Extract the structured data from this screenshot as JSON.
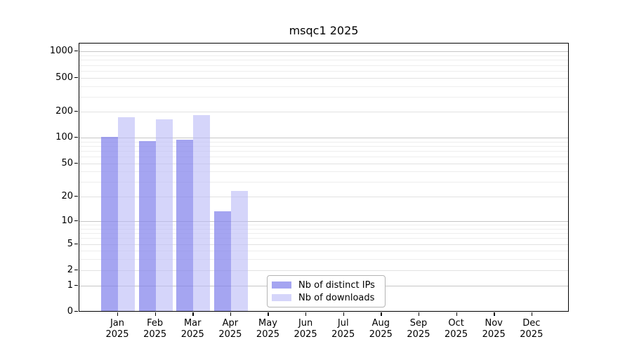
{
  "chart_data": {
    "type": "bar",
    "title": "msqc1 2025",
    "xlabel": "",
    "ylabel": "",
    "year_label": "2025",
    "categories": [
      "Jan",
      "Feb",
      "Mar",
      "Apr",
      "May",
      "Jun",
      "Jul",
      "Aug",
      "Sep",
      "Oct",
      "Nov",
      "Dec"
    ],
    "series": [
      {
        "name": "Nb of distinct IPs",
        "color": "#8282eb",
        "values": [
          100,
          90,
          92,
          13,
          0,
          0,
          0,
          0,
          0,
          0,
          0,
          0
        ]
      },
      {
        "name": "Nb of downloads",
        "color": "#bbbbf7",
        "values": [
          170,
          160,
          180,
          23,
          0,
          0,
          0,
          0,
          0,
          0,
          0,
          0
        ]
      }
    ],
    "yticks": [
      0,
      1,
      2,
      5,
      10,
      20,
      50,
      100,
      200,
      500,
      1000
    ],
    "ylim": [
      0,
      1200
    ],
    "yscale": "symlog",
    "grid": true,
    "legend_position": "lower center-left inside plot"
  }
}
